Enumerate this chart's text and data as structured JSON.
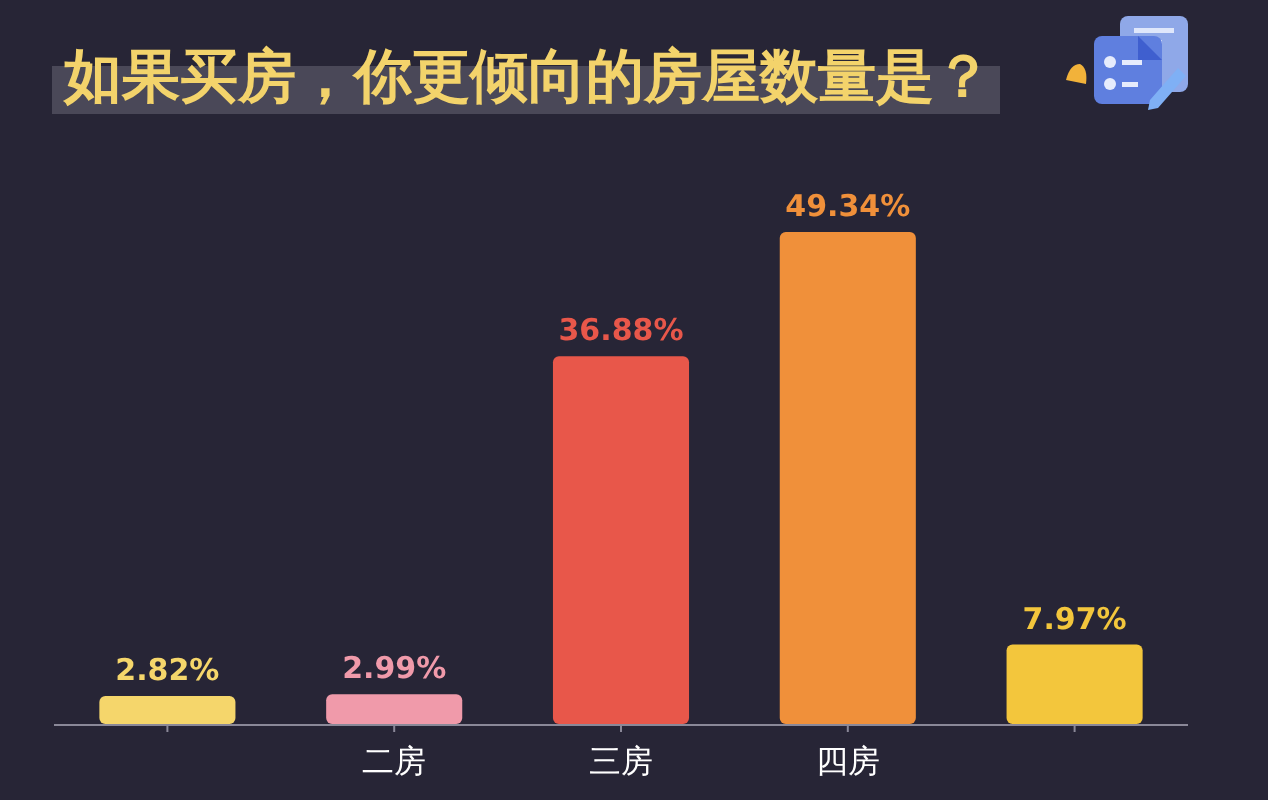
{
  "chart_data": {
    "type": "bar",
    "title": "如果买房，你更倾向的房屋数量是？",
    "categories": [
      null,
      "二房",
      "三房",
      "四房",
      null
    ],
    "values": [
      2.82,
      2.99,
      36.88,
      49.34,
      7.97
    ],
    "colors": [
      "#f5d66b",
      "#f09aaa",
      "#e8574a",
      "#f0903a",
      "#f3c63c"
    ],
    "value_labels": [
      "2.82%",
      "2.99%",
      "36.88%",
      "49.34%",
      "7.97%"
    ]
  }
}
